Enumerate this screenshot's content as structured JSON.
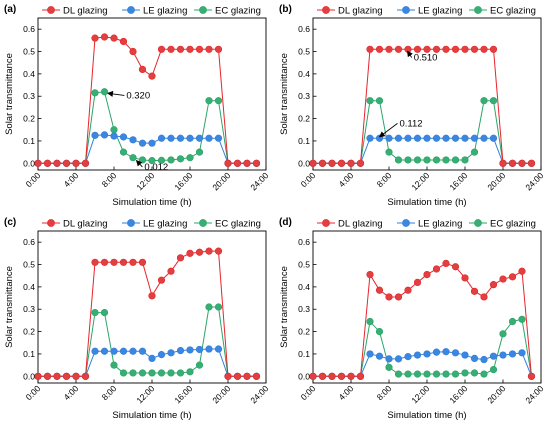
{
  "colors": {
    "DL": "#e8252b",
    "LE": "#2f7fd8",
    "EC": "#2aa56a",
    "DL_fill": "#e0403f",
    "LE_fill": "#3b86e0",
    "EC_fill": "#38ad74"
  },
  "chart_data": [
    {
      "type": "line",
      "panel": "(a)",
      "xlabel": "Simulation time (h)",
      "ylabel": "Solar transmittance",
      "xlim": [
        0,
        24
      ],
      "ylim": [
        -0.03,
        0.65
      ],
      "x_ticks": [
        0,
        4,
        8,
        12,
        16,
        20,
        24
      ],
      "x_tick_labels": [
        "0:00",
        "4:00",
        "8:00",
        "12:00",
        "16:00",
        "20:00",
        "24:00"
      ],
      "y_ticks": [
        0.0,
        0.1,
        0.2,
        0.3,
        0.4,
        0.5,
        0.6
      ],
      "y_tick_labels": [
        "0.0",
        "0.1",
        "0.2",
        "0.3",
        "0.4",
        "0.5",
        "0.6"
      ],
      "legend_position": "top",
      "series": [
        {
          "name": "DL glazing",
          "key": "DL",
          "x": [
            0,
            1,
            2,
            3,
            4,
            5,
            6,
            7,
            8,
            9,
            10,
            11,
            12,
            13,
            14,
            15,
            16,
            17,
            18,
            19,
            20,
            21,
            22,
            23
          ],
          "values": [
            0,
            0,
            0,
            0,
            0,
            0,
            0.56,
            0.565,
            0.56,
            0.545,
            0.5,
            0.42,
            0.39,
            0.51,
            0.51,
            0.51,
            0.51,
            0.51,
            0.51,
            0.51,
            0,
            0,
            0,
            0
          ]
        },
        {
          "name": "LE glazing",
          "key": "LE",
          "x": [
            0,
            1,
            2,
            3,
            4,
            5,
            6,
            7,
            8,
            9,
            10,
            11,
            12,
            13,
            14,
            15,
            16,
            17,
            18,
            19,
            20,
            21,
            22,
            23
          ],
          "values": [
            0,
            0,
            0,
            0,
            0,
            0,
            0.125,
            0.127,
            0.122,
            0.118,
            0.105,
            0.09,
            0.09,
            0.112,
            0.112,
            0.112,
            0.112,
            0.112,
            0.112,
            0.112,
            0,
            0,
            0,
            0
          ]
        },
        {
          "name": "EC glazing",
          "key": "EC",
          "x": [
            0,
            1,
            2,
            3,
            4,
            5,
            6,
            7,
            8,
            9,
            10,
            11,
            12,
            13,
            14,
            15,
            16,
            17,
            18,
            19,
            20,
            21,
            22,
            23
          ],
          "values": [
            0,
            0,
            0,
            0,
            0,
            0,
            0.315,
            0.32,
            0.15,
            0.05,
            0.025,
            0.015,
            0.012,
            0.013,
            0.015,
            0.02,
            0.025,
            0.05,
            0.28,
            0.28,
            0,
            0,
            0,
            0
          ]
        }
      ],
      "annotations": [
        {
          "text": "0.320",
          "point_x": 7.1,
          "point_y": 0.315,
          "text_x": 9.3,
          "text_y": 0.29
        },
        {
          "text": "0.012",
          "point_x": 10.2,
          "point_y": 0.02,
          "text_x": 11.2,
          "text_y": -0.03
        }
      ]
    },
    {
      "type": "line",
      "panel": "(b)",
      "xlabel": "Simulation time (h)",
      "ylabel": "Solar transmittance",
      "xlim": [
        0,
        24
      ],
      "ylim": [
        -0.03,
        0.65
      ],
      "x_ticks": [
        0,
        4,
        8,
        12,
        16,
        20,
        24
      ],
      "x_tick_labels": [
        "0:00",
        "4:00",
        "8:00",
        "12:00",
        "16:00",
        "20:00",
        "24:00"
      ],
      "y_ticks": [
        0.0,
        0.1,
        0.2,
        0.3,
        0.4,
        0.5,
        0.6
      ],
      "y_tick_labels": [
        "0.0",
        "0.1",
        "0.2",
        "0.3",
        "0.4",
        "0.5",
        "0.6"
      ],
      "legend_position": "top",
      "series": [
        {
          "name": "DL glazing",
          "key": "DL",
          "x": [
            0,
            1,
            2,
            3,
            4,
            5,
            6,
            7,
            8,
            9,
            10,
            11,
            12,
            13,
            14,
            15,
            16,
            17,
            18,
            19,
            20,
            21,
            22,
            23
          ],
          "values": [
            0,
            0,
            0,
            0,
            0,
            0,
            0.51,
            0.51,
            0.51,
            0.51,
            0.51,
            0.51,
            0.51,
            0.51,
            0.51,
            0.51,
            0.51,
            0.51,
            0.51,
            0.51,
            0,
            0,
            0,
            0
          ]
        },
        {
          "name": "LE glazing",
          "key": "LE",
          "x": [
            0,
            1,
            2,
            3,
            4,
            5,
            6,
            7,
            8,
            9,
            10,
            11,
            12,
            13,
            14,
            15,
            16,
            17,
            18,
            19,
            20,
            21,
            22,
            23
          ],
          "values": [
            0,
            0,
            0,
            0,
            0,
            0,
            0.112,
            0.112,
            0.112,
            0.112,
            0.112,
            0.112,
            0.112,
            0.112,
            0.112,
            0.112,
            0.112,
            0.112,
            0.112,
            0.112,
            0,
            0,
            0,
            0
          ]
        },
        {
          "name": "EC glazing",
          "key": "EC",
          "x": [
            0,
            1,
            2,
            3,
            4,
            5,
            6,
            7,
            8,
            9,
            10,
            11,
            12,
            13,
            14,
            15,
            16,
            17,
            18,
            19,
            20,
            21,
            22,
            23
          ],
          "values": [
            0,
            0,
            0,
            0,
            0,
            0,
            0.28,
            0.28,
            0.05,
            0.015,
            0.015,
            0.015,
            0.015,
            0.015,
            0.015,
            0.015,
            0.015,
            0.05,
            0.28,
            0.28,
            0,
            0,
            0,
            0
          ]
        }
      ],
      "annotations": [
        {
          "text": "0.510",
          "point_x": 9.8,
          "point_y": 0.51,
          "text_x": 10.6,
          "text_y": 0.46
        },
        {
          "text": "0.112",
          "point_x": 6.8,
          "point_y": 0.112,
          "text_x": 9.1,
          "text_y": 0.165
        }
      ]
    },
    {
      "type": "line",
      "panel": "(c)",
      "xlabel": "Simulation time (h)",
      "ylabel": "Solar transmittance",
      "xlim": [
        0,
        24
      ],
      "ylim": [
        -0.03,
        0.65
      ],
      "x_ticks": [
        0,
        4,
        8,
        12,
        16,
        20,
        24
      ],
      "x_tick_labels": [
        "0:00",
        "4:00",
        "8:00",
        "12:00",
        "16:00",
        "20:00",
        "24:00"
      ],
      "y_ticks": [
        0.0,
        0.1,
        0.2,
        0.3,
        0.4,
        0.5,
        0.6
      ],
      "y_tick_labels": [
        "0.0",
        "0.1",
        "0.2",
        "0.3",
        "0.4",
        "0.5",
        "0.6"
      ],
      "legend_position": "top",
      "series": [
        {
          "name": "DL glazing",
          "key": "DL",
          "x": [
            0,
            1,
            2,
            3,
            4,
            5,
            6,
            7,
            8,
            9,
            10,
            11,
            12,
            13,
            14,
            15,
            16,
            17,
            18,
            19,
            20,
            21,
            22,
            23
          ],
          "values": [
            0,
            0,
            0,
            0,
            0,
            0,
            0.51,
            0.51,
            0.51,
            0.51,
            0.51,
            0.51,
            0.36,
            0.43,
            0.47,
            0.53,
            0.55,
            0.555,
            0.56,
            0.56,
            0,
            0,
            0,
            0
          ]
        },
        {
          "name": "LE glazing",
          "key": "LE",
          "x": [
            0,
            1,
            2,
            3,
            4,
            5,
            6,
            7,
            8,
            9,
            10,
            11,
            12,
            13,
            14,
            15,
            16,
            17,
            18,
            19,
            20,
            21,
            22,
            23
          ],
          "values": [
            0,
            0,
            0,
            0,
            0,
            0,
            0.112,
            0.112,
            0.112,
            0.112,
            0.112,
            0.112,
            0.08,
            0.097,
            0.105,
            0.115,
            0.118,
            0.12,
            0.122,
            0.122,
            0,
            0,
            0,
            0
          ]
        },
        {
          "name": "EC glazing",
          "key": "EC",
          "x": [
            0,
            1,
            2,
            3,
            4,
            5,
            6,
            7,
            8,
            9,
            10,
            11,
            12,
            13,
            14,
            15,
            16,
            17,
            18,
            19,
            20,
            21,
            22,
            23
          ],
          "values": [
            0,
            0,
            0,
            0,
            0,
            0,
            0.285,
            0.285,
            0.05,
            0.015,
            0.015,
            0.015,
            0.015,
            0.015,
            0.015,
            0.015,
            0.02,
            0.05,
            0.31,
            0.31,
            0,
            0,
            0,
            0
          ]
        }
      ],
      "annotations": []
    },
    {
      "type": "line",
      "panel": "(d)",
      "xlabel": "Simulation time (h)",
      "ylabel": "Solar transmittance",
      "xlim": [
        0,
        24
      ],
      "ylim": [
        -0.03,
        0.65
      ],
      "x_ticks": [
        0,
        4,
        8,
        12,
        16,
        20,
        24
      ],
      "x_tick_labels": [
        "0:00",
        "4:00",
        "8:00",
        "12:00",
        "16:00",
        "20:00",
        "24:00"
      ],
      "y_ticks": [
        0.0,
        0.1,
        0.2,
        0.3,
        0.4,
        0.5,
        0.6
      ],
      "y_tick_labels": [
        "0.0",
        "0.1",
        "0.2",
        "0.3",
        "0.4",
        "0.5",
        "0.6"
      ],
      "legend_position": "top",
      "series": [
        {
          "name": "DL glazing",
          "key": "DL",
          "x": [
            0,
            1,
            2,
            3,
            4,
            5,
            6,
            7,
            8,
            9,
            10,
            11,
            12,
            13,
            14,
            15,
            16,
            17,
            18,
            19,
            20,
            21,
            22,
            23
          ],
          "values": [
            0,
            0,
            0,
            0,
            0,
            0,
            0.455,
            0.385,
            0.355,
            0.355,
            0.385,
            0.42,
            0.455,
            0.48,
            0.505,
            0.49,
            0.44,
            0.38,
            0.355,
            0.41,
            0.435,
            0.445,
            0.47,
            0
          ]
        },
        {
          "name": "LE glazing",
          "key": "LE",
          "x": [
            0,
            1,
            2,
            3,
            4,
            5,
            6,
            7,
            8,
            9,
            10,
            11,
            12,
            13,
            14,
            15,
            16,
            17,
            18,
            19,
            20,
            21,
            22,
            23
          ],
          "values": [
            0,
            0,
            0,
            0,
            0,
            0,
            0.1,
            0.09,
            0.078,
            0.078,
            0.088,
            0.095,
            0.1,
            0.108,
            0.11,
            0.105,
            0.095,
            0.08,
            0.075,
            0.09,
            0.095,
            0.1,
            0.105,
            0
          ]
        },
        {
          "name": "EC glazing",
          "key": "EC",
          "x": [
            0,
            1,
            2,
            3,
            4,
            5,
            6,
            7,
            8,
            9,
            10,
            11,
            12,
            13,
            14,
            15,
            16,
            17,
            18,
            19,
            20,
            21,
            22,
            23
          ],
          "values": [
            0,
            0,
            0,
            0,
            0,
            0,
            0.245,
            0.2,
            0.04,
            0.01,
            0.01,
            0.01,
            0.01,
            0.01,
            0.01,
            0.01,
            0.015,
            0.015,
            0.01,
            0.03,
            0.19,
            0.245,
            0.255,
            0
          ]
        }
      ],
      "annotations": []
    }
  ]
}
